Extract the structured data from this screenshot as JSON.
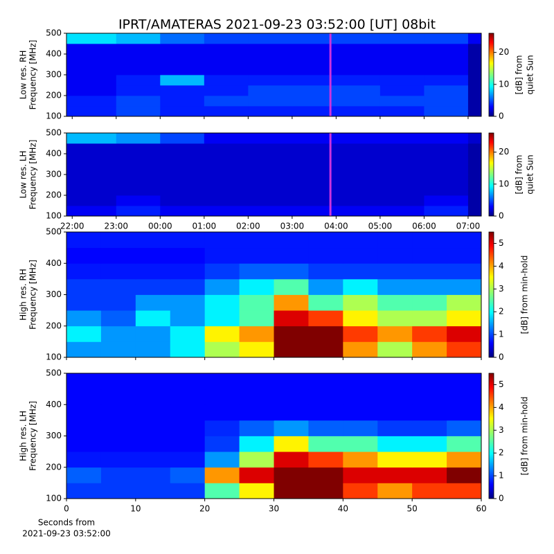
{
  "chart_data": [
    {
      "type": "heatmap",
      "title": "IPRT/AMATERAS 2021-09-23 03:52:00 [UT]   08bit",
      "ylabel": [
        "Low res. RH",
        "Frequency [MHz]"
      ],
      "xlim": [
        21.87,
        31.3
      ],
      "xticks": [
        22,
        23,
        24,
        25,
        26,
        27,
        28,
        29,
        30,
        31
      ],
      "xticklabels": false,
      "ylim": [
        100,
        500
      ],
      "yticks": [
        100,
        200,
        300,
        400,
        500
      ],
      "xbins": [
        21.87,
        23,
        24,
        25,
        26,
        27,
        28,
        29,
        30,
        31,
        31.3
      ],
      "ybins": [
        100,
        150,
        200,
        250,
        300,
        350,
        400,
        450,
        500
      ],
      "z": [
        [
          4,
          5,
          4,
          4,
          4,
          4,
          4,
          4,
          5,
          1
        ],
        [
          4,
          5,
          4,
          5,
          5,
          5,
          5,
          5,
          5,
          1
        ],
        [
          3,
          4,
          4,
          4,
          5,
          5,
          5,
          4,
          5,
          1
        ],
        [
          3,
          4,
          8,
          4,
          4,
          4,
          4,
          4,
          4,
          1
        ],
        [
          3,
          3,
          3,
          3,
          3,
          3,
          3,
          3,
          3,
          1
        ],
        [
          3,
          3,
          3,
          3,
          3,
          3,
          3,
          3,
          3,
          1
        ],
        [
          3,
          3,
          3,
          3,
          3,
          3,
          3,
          3,
          3,
          1
        ],
        [
          9,
          8,
          6,
          5,
          5,
          5,
          5,
          5,
          5,
          3
        ]
      ],
      "marker": {
        "x": 27.87,
        "color": "#cc33dd"
      },
      "colorbar": {
        "label": [
          "[dB] from",
          "quiet Sun"
        ],
        "lim": [
          0,
          26
        ],
        "ticks": [
          0,
          10,
          20
        ]
      }
    },
    {
      "type": "heatmap",
      "ylabel": [
        "Low res. LH",
        "Frequency [MHz]"
      ],
      "xlim": [
        21.87,
        31.3
      ],
      "xticks": [
        {
          "value": 22,
          "label": "22:00"
        },
        {
          "value": 23,
          "label": "23:00"
        },
        {
          "value": 24,
          "label": "00:00"
        },
        {
          "value": 25,
          "label": "01:00"
        },
        {
          "value": 26,
          "label": "02:00"
        },
        {
          "value": 27,
          "label": "03:00"
        },
        {
          "value": 28,
          "label": "04:00"
        },
        {
          "value": 29,
          "label": "05:00"
        },
        {
          "value": 30,
          "label": "06:00"
        },
        {
          "value": 31,
          "label": "07:00"
        }
      ],
      "xticklabels": true,
      "ylim": [
        100,
        500
      ],
      "yticks": [
        100,
        200,
        300,
        400,
        500
      ],
      "xbins": [
        21.87,
        23,
        24,
        25,
        26,
        27,
        28,
        29,
        30,
        31,
        31.3
      ],
      "ybins": [
        100,
        150,
        200,
        250,
        300,
        350,
        400,
        450,
        500
      ],
      "z": [
        [
          3,
          4,
          3,
          3,
          3,
          3,
          3,
          3,
          4,
          1
        ],
        [
          2,
          3,
          2,
          2,
          2,
          2,
          2,
          2,
          3,
          1
        ],
        [
          2,
          2,
          2,
          2,
          2,
          2,
          2,
          2,
          2,
          1
        ],
        [
          2,
          2,
          2,
          2,
          2,
          2,
          2,
          2,
          2,
          1
        ],
        [
          2,
          2,
          2,
          2,
          2,
          2,
          2,
          2,
          2,
          1
        ],
        [
          2,
          2,
          2,
          2,
          2,
          2,
          2,
          2,
          2,
          1
        ],
        [
          2,
          2,
          2,
          2,
          2,
          2,
          2,
          2,
          2,
          1
        ],
        [
          8,
          7,
          5,
          3,
          3,
          3,
          3,
          3,
          3,
          2
        ]
      ],
      "marker": {
        "x": 27.87,
        "color": "#cc33dd"
      },
      "colorbar": {
        "label": [
          "[dB] from",
          "quiet Sun"
        ],
        "lim": [
          0,
          26
        ],
        "ticks": [
          0,
          10,
          20
        ]
      }
    },
    {
      "type": "heatmap",
      "ylabel": [
        "High res. RH",
        "Frequency [MHz]"
      ],
      "xlim": [
        0,
        60
      ],
      "xticks": [
        0,
        10,
        20,
        30,
        40,
        50,
        60
      ],
      "xticklabels": false,
      "ylim": [
        100,
        500
      ],
      "yticks": [
        100,
        200,
        300,
        400,
        500
      ],
      "xbins": [
        0,
        5,
        10,
        15,
        20,
        25,
        30,
        35,
        40,
        45,
        50,
        55,
        60
      ],
      "ybins": [
        100,
        150,
        200,
        250,
        300,
        350,
        400,
        450,
        500
      ],
      "z": [
        [
          1.5,
          1.5,
          1.5,
          2,
          3,
          3.5,
          5.5,
          5.5,
          4,
          3,
          4,
          4.5
        ],
        [
          2,
          1.5,
          1.5,
          2,
          3.5,
          4,
          5.5,
          5.5,
          4.5,
          4,
          4.5,
          5
        ],
        [
          1.5,
          1.2,
          2,
          1.5,
          2,
          2.5,
          5,
          4.5,
          3.5,
          3,
          3,
          3.5
        ],
        [
          1,
          1,
          1.5,
          1.5,
          2,
          2.5,
          4,
          2.5,
          3,
          2.5,
          2.5,
          3
        ],
        [
          1,
          1,
          1,
          1,
          1.5,
          2,
          2.5,
          1.5,
          2,
          1.5,
          1.5,
          1.5
        ],
        [
          0.8,
          0.8,
          0.8,
          0.8,
          1,
          1.2,
          1.2,
          1,
          1,
          1,
          1,
          1
        ],
        [
          0.7,
          0.7,
          0.7,
          0.7,
          0.8,
          0.8,
          0.8,
          0.8,
          0.8,
          0.8,
          0.8,
          0.8
        ],
        [
          0.8,
          0.8,
          0.8,
          0.8,
          0.8,
          0.8,
          0.8,
          0.8,
          0.8,
          0.8,
          0.8,
          0.8
        ]
      ],
      "colorbar": {
        "label": [
          "[dB] from min-hold"
        ],
        "lim": [
          0,
          5.5
        ],
        "ticks": [
          0,
          1,
          2,
          3,
          4,
          5
        ]
      }
    },
    {
      "type": "heatmap",
      "ylabel": [
        "High res. LH",
        "Frequency [MHz]"
      ],
      "xlabel": [
        "Seconds from",
        "2021-09-23 03:52:00"
      ],
      "xlim": [
        0,
        60
      ],
      "xticks": [
        0,
        10,
        20,
        30,
        40,
        50,
        60
      ],
      "xticklabels": true,
      "ylim": [
        100,
        500
      ],
      "yticks": [
        100,
        200,
        300,
        400,
        500
      ],
      "xbins": [
        0,
        5,
        10,
        15,
        20,
        25,
        30,
        35,
        40,
        45,
        50,
        55,
        60
      ],
      "ybins": [
        100,
        150,
        200,
        250,
        300,
        350,
        400,
        450,
        500
      ],
      "z": [
        [
          1,
          1,
          1,
          1,
          2.5,
          3.5,
          5.5,
          5.5,
          4.5,
          4,
          4.5,
          4.5
        ],
        [
          1.2,
          1,
          1,
          1.2,
          4,
          5,
          5.5,
          5.5,
          5,
          5,
          5,
          5.5
        ],
        [
          0.8,
          0.8,
          0.8,
          0.8,
          1.5,
          3,
          5,
          4.5,
          4,
          3.5,
          3.5,
          4
        ],
        [
          0.7,
          0.7,
          0.7,
          0.7,
          1,
          2,
          3.5,
          2.5,
          2.5,
          2,
          2,
          2.5
        ],
        [
          0.7,
          0.7,
          0.7,
          0.7,
          0.9,
          1.2,
          1.5,
          1.2,
          1.2,
          1,
          1,
          1.2
        ],
        [
          0.7,
          0.7,
          0.7,
          0.7,
          0.7,
          0.7,
          0.7,
          0.7,
          0.7,
          0.7,
          0.7,
          0.7
        ],
        [
          0.7,
          0.7,
          0.7,
          0.7,
          0.7,
          0.7,
          0.7,
          0.7,
          0.7,
          0.7,
          0.7,
          0.7
        ],
        [
          0.7,
          0.7,
          0.7,
          0.7,
          0.7,
          0.7,
          0.7,
          0.7,
          0.7,
          0.7,
          0.7,
          0.7
        ]
      ],
      "colorbar": {
        "label": [
          "[dB] from min-hold"
        ],
        "lim": [
          0,
          5.5
        ],
        "ticks": [
          0,
          1,
          2,
          3,
          4,
          5
        ]
      }
    }
  ]
}
